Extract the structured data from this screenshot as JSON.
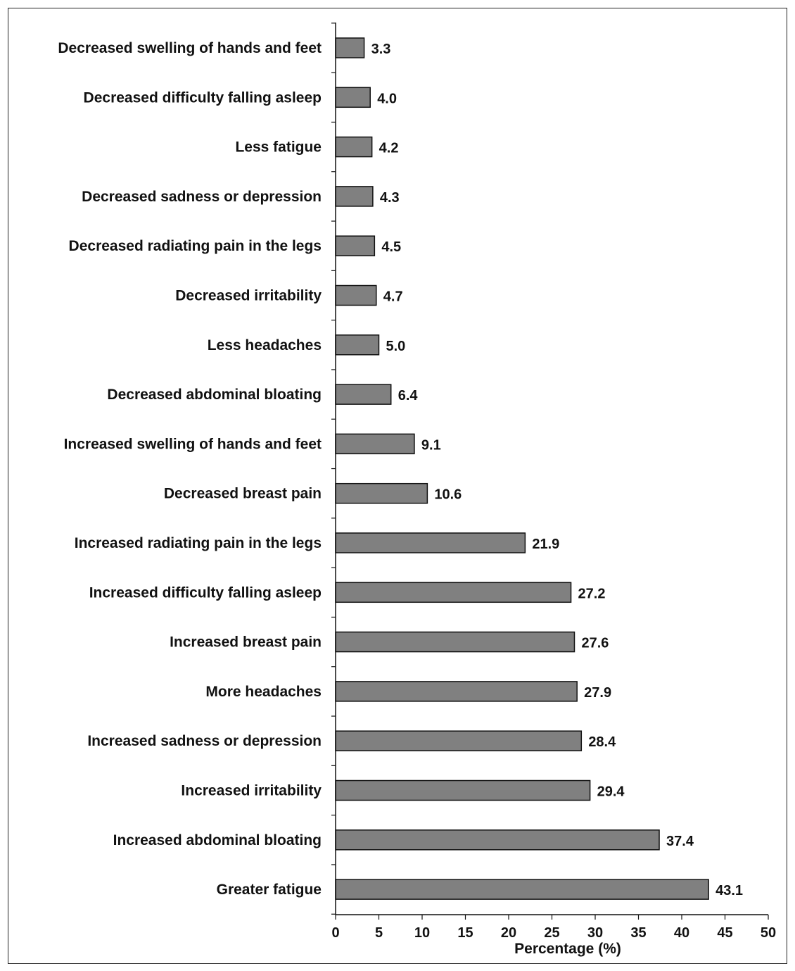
{
  "chart_data": {
    "type": "bar",
    "orientation": "horizontal",
    "categories": [
      "Decreased swelling of hands and feet",
      "Decreased difficulty falling asleep",
      "Less fatigue",
      "Decreased sadness or depression",
      "Decreased radiating pain in the legs",
      "Decreased irritability",
      "Less headaches",
      "Decreased abdominal bloating",
      "Increased swelling of hands and feet",
      "Decreased breast pain",
      "Increased radiating pain in the legs",
      "Increased difficulty falling asleep",
      "Increased breast pain",
      "More headaches",
      "Increased sadness or depression",
      "Increased irritability",
      "Increased abdominal bloating",
      "Greater fatigue"
    ],
    "values": [
      3.3,
      4.0,
      4.2,
      4.3,
      4.5,
      4.7,
      5.0,
      6.4,
      9.1,
      10.6,
      21.9,
      27.2,
      27.6,
      27.9,
      28.4,
      29.4,
      37.4,
      43.1
    ],
    "value_labels": [
      "3.3",
      "4.0",
      "4.2",
      "4.3",
      "4.5",
      "4.7",
      "5.0",
      "6.4",
      "9.1",
      "10.6",
      "21.9",
      "27.2",
      "27.6",
      "27.9",
      "28.4",
      "29.4",
      "37.4",
      "43.1"
    ],
    "xlabel": "Percentage (%)",
    "xlim": [
      0,
      50
    ],
    "xticks": [
      "0",
      "5",
      "10",
      "15",
      "20",
      "25",
      "30",
      "35",
      "40",
      "45",
      "50"
    ],
    "grid": false,
    "bar_color": "#808080",
    "bar_edge_color": "#111111"
  }
}
